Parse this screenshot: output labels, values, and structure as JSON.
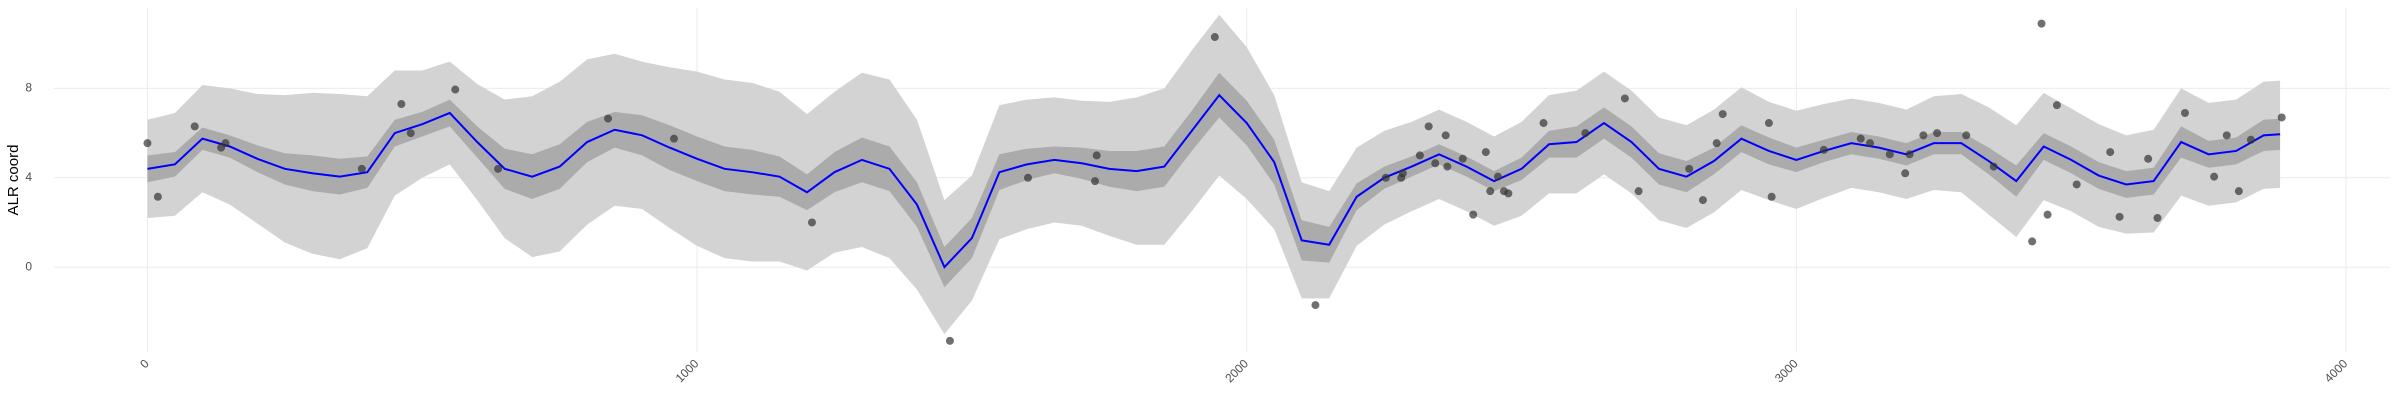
{
  "chart_data": {
    "type": "line",
    "y_label": "ALR coord",
    "xlim": [
      -170,
      4080
    ],
    "ylim": [
      -3.8,
      11.6
    ],
    "xticks": [
      0,
      1000,
      2000,
      3000,
      4000
    ],
    "yticks": [
      0,
      4,
      8
    ],
    "grid": true,
    "x": [
      0,
      50,
      100,
      150,
      200,
      250,
      300,
      350,
      400,
      450,
      500,
      550,
      600,
      650,
      700,
      750,
      800,
      850,
      900,
      950,
      1000,
      1050,
      1100,
      1150,
      1200,
      1250,
      1300,
      1350,
      1400,
      1450,
      1500,
      1550,
      1600,
      1650,
      1700,
      1750,
      1800,
      1850,
      1900,
      1950,
      2000,
      2050,
      2100,
      2150,
      2200,
      2250,
      2300,
      2350,
      2400,
      2450,
      2500,
      2550,
      2600,
      2650,
      2700,
      2750,
      2800,
      2850,
      2900,
      2950,
      3000,
      3050,
      3100,
      3150,
      3200,
      3250,
      3300,
      3350,
      3400,
      3450,
      3500,
      3550,
      3600,
      3650,
      3700,
      3750,
      3800,
      3850,
      3880
    ],
    "fit": {
      "color": "#0000ff",
      "inner_color": "#ababab",
      "outer_color": "#d3d3d3",
      "values": [
        4.4,
        4.6,
        5.75,
        5.4,
        4.85,
        4.4,
        4.2,
        4.05,
        4.25,
        6.0,
        6.4,
        6.9,
        5.6,
        4.4,
        4.05,
        4.5,
        5.6,
        6.15,
        5.9,
        5.35,
        4.85,
        4.4,
        4.25,
        4.05,
        3.35,
        4.25,
        4.8,
        4.4,
        2.8,
        0.0,
        1.3,
        4.25,
        4.6,
        4.8,
        4.65,
        4.4,
        4.3,
        4.5,
        6.1,
        7.7,
        6.45,
        4.7,
        1.2,
        1.0,
        3.15,
        4.0,
        4.5,
        5.05,
        4.5,
        3.85,
        4.4,
        5.5,
        5.6,
        6.45,
        5.6,
        4.4,
        4.05,
        4.75,
        5.75,
        5.2,
        4.8,
        5.2,
        5.55,
        5.35,
        5.05,
        5.55,
        5.55,
        4.75,
        3.85,
        5.4,
        4.8,
        4.1,
        3.7,
        3.85,
        5.6,
        5.05,
        5.2,
        5.9,
        5.95
      ],
      "inner_error": [
        0.6,
        0.55,
        0.5,
        0.5,
        0.6,
        0.7,
        0.8,
        0.8,
        0.7,
        0.6,
        0.55,
        0.6,
        0.7,
        0.9,
        1.0,
        1.0,
        0.9,
        0.8,
        0.9,
        1.0,
        1.0,
        1.0,
        1.0,
        0.9,
        0.8,
        0.9,
        1.0,
        1.0,
        1.0,
        0.9,
        0.9,
        0.8,
        0.7,
        0.6,
        0.7,
        0.8,
        0.9,
        0.9,
        0.9,
        1.0,
        1.0,
        1.0,
        0.9,
        0.8,
        0.6,
        0.5,
        0.45,
        0.45,
        0.45,
        0.45,
        0.5,
        0.6,
        0.7,
        0.7,
        0.7,
        0.7,
        0.7,
        0.6,
        0.6,
        0.6,
        0.55,
        0.5,
        0.5,
        0.5,
        0.5,
        0.5,
        0.5,
        0.6,
        0.7,
        0.6,
        0.6,
        0.6,
        0.6,
        0.6,
        0.7,
        0.6,
        0.6,
        0.7,
        0.7
      ],
      "outer_error": [
        2.2,
        2.3,
        2.4,
        2.6,
        2.9,
        3.3,
        3.6,
        3.7,
        3.4,
        2.8,
        2.4,
        2.3,
        2.6,
        3.1,
        3.6,
        3.8,
        3.7,
        3.4,
        3.3,
        3.6,
        3.9,
        4.0,
        4.0,
        3.8,
        3.5,
        3.6,
        3.9,
        4.0,
        3.8,
        3.0,
        2.8,
        3.0,
        2.9,
        2.8,
        2.8,
        3.0,
        3.3,
        3.5,
        3.6,
        3.6,
        3.4,
        3.0,
        2.6,
        2.4,
        2.2,
        2.1,
        2.0,
        2.0,
        2.0,
        2.0,
        2.1,
        2.2,
        2.3,
        2.3,
        2.3,
        2.3,
        2.3,
        2.3,
        2.3,
        2.2,
        2.2,
        2.1,
        2.0,
        2.0,
        2.0,
        2.1,
        2.2,
        2.4,
        2.5,
        2.4,
        2.3,
        2.3,
        2.2,
        2.3,
        2.4,
        2.3,
        2.3,
        2.4,
        2.4
      ]
    },
    "points": {
      "color": "#333333",
      "x": [
        0,
        19,
        86,
        134,
        142,
        390,
        462,
        479,
        560,
        638,
        838,
        958,
        1209,
        1460,
        1602,
        1727,
        1724,
        1942,
        2125,
        2253,
        2281,
        2284,
        2315,
        2331,
        2343,
        2362,
        2365,
        2393,
        2412,
        2435,
        2443,
        2457,
        2468,
        2476,
        2540,
        2616,
        2688,
        2713,
        2805,
        2830,
        2855,
        2866,
        2950,
        2955,
        3050,
        3117,
        3134,
        3170,
        3198,
        3206,
        3231,
        3256,
        3309,
        3359,
        3429,
        3446,
        3457,
        3474,
        3510,
        3571,
        3588,
        3640,
        3657,
        3707,
        3760,
        3783,
        3805,
        3827,
        3883
      ],
      "y": [
        5.55,
        3.15,
        6.3,
        5.35,
        5.55,
        4.4,
        7.3,
        6.0,
        7.95,
        4.4,
        6.65,
        5.75,
        2.0,
        -3.3,
        4.0,
        5.0,
        3.85,
        10.3,
        -1.7,
        4.0,
        4.0,
        4.2,
        5.0,
        6.3,
        4.65,
        5.9,
        4.5,
        4.85,
        2.35,
        5.15,
        3.4,
        4.05,
        3.4,
        3.3,
        6.45,
        6.0,
        7.55,
        3.4,
        4.4,
        3.0,
        5.55,
        6.85,
        6.45,
        3.15,
        5.25,
        5.75,
        5.55,
        5.05,
        4.2,
        5.05,
        5.9,
        6.0,
        5.9,
        4.5,
        1.15,
        10.9,
        2.35,
        7.25,
        3.7,
        5.15,
        2.25,
        4.85,
        2.2,
        6.9,
        4.05,
        5.9,
        3.4,
        5.7,
        6.7
      ]
    }
  }
}
